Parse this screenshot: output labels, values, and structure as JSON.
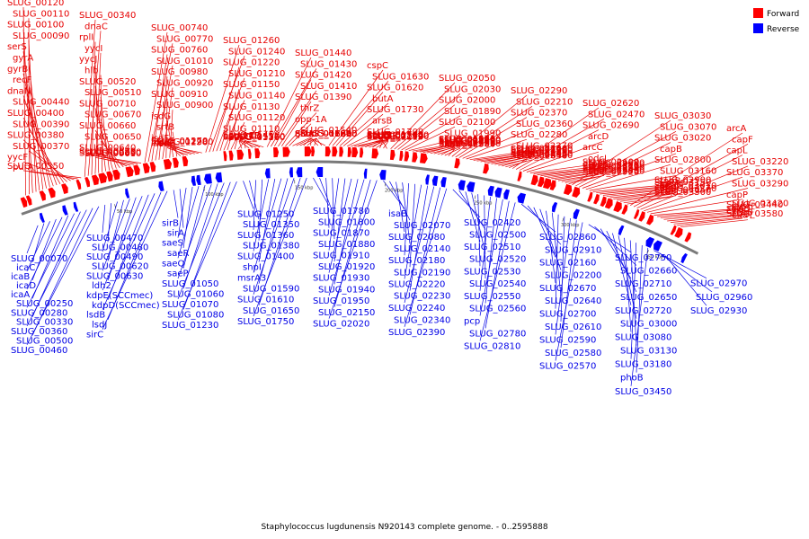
{
  "caption": "Staphylococcus lugdunensis N920143 complete genome. - 0..2595888",
  "legend": {
    "forward": {
      "label": "Forward",
      "color": "#ff0000"
    },
    "reverse": {
      "label": "Reverse",
      "color": "#0000ff"
    }
  },
  "colors": {
    "forward_text": "#e60000",
    "reverse_text": "#0000e6",
    "backbone": "#7a7a7a"
  },
  "scale_ticks": [
    "50 kbp",
    "100 kbp",
    "150 kbp",
    "200 kbp",
    "250 kbp",
    "300 kbp",
    "350 kbp"
  ],
  "forward_labels": [
    "SLUG_00120",
    "SLUG_00110",
    "SLUG_00100",
    "SLUG_00090",
    "serS",
    "gyrA",
    "gyrB",
    "recF",
    "dnaN",
    "SLUG_00440",
    "SLUG_00400",
    "SLUG_00390",
    "SLUG_00380",
    "SLUG_00370",
    "yycF",
    "purA",
    "SLUG_00350",
    "SLUG_00340",
    "dnaC",
    "rplI",
    "yycI",
    "yycJ",
    "hlb",
    "SLUG_00520",
    "SLUG_00510",
    "SLUG_00710",
    "SLUG_00670",
    "SLUG_00660",
    "SLUG_00650",
    "SLUG_00640",
    "SLUG_00610",
    "SLUG_00600",
    "SLUG_00830",
    "SLUG_00820",
    "SLUG_00740",
    "SLUG_00770",
    "SLUG_00760",
    "SLUG_01010",
    "SLUG_00980",
    "SLUG_00920",
    "SLUG_00910",
    "SLUG_00900",
    "isdG",
    "srtB",
    "isdF",
    "isdE",
    "isdK",
    "isdC",
    "SLUG_01290",
    "SLUG_01280",
    "SLUG_01270",
    "SLUG_01260",
    "SLUG_01240",
    "SLUG_01220",
    "SLUG_01210",
    "SLUG_01150",
    "SLUG_01140",
    "SLUG_01130",
    "SLUG_01120",
    "SLUG_01110",
    "SLUG_01160",
    "SLUG_01530",
    "SLUG_01510",
    "opp-1F",
    "opp-1D",
    "opp-1C",
    "opp-1B",
    "SLUG_01450",
    "SLUG_01440",
    "SLUG_01430",
    "SLUG_01420",
    "SLUG_01410",
    "SLUG_01390",
    "thrZ",
    "opp-1A",
    "SLUG_01540",
    "glcA",
    "SLUG_01830",
    "SLUG_01820",
    "SLUG_01810",
    "SLUG_01790",
    "SLUG_01690",
    "SLUG_01680",
    "SLUG_01670",
    "SLUG_01660",
    "cspC",
    "SLUG_01630",
    "SLUG_01620",
    "butA",
    "SLUG_01730",
    "arsB",
    "SLUG_01700",
    "crtN",
    "SLUG_01740",
    "SLUG_01640",
    "arsR2",
    "crtM",
    "SLUG_01840",
    "mepB",
    "SLUG_02130",
    "SLUG_02120",
    "SLUG_02110",
    "SLUG_02050",
    "SLUG_02030",
    "SLUG_02000",
    "SLUG_01890",
    "SLUG_02100",
    "SLUG_01990",
    "SLUG_01970",
    "SLUG_01960",
    "SLUG_01980",
    "SLUG_02090",
    "SLUG_02010",
    "SLUG_02410",
    "SLUG_02400",
    "pmi",
    "SLUG_02320",
    "SLUG_02310",
    "SLUG_02300",
    "SLUG_02290",
    "SLUG_02210",
    "SLUG_02370",
    "SLUG_02360",
    "SLUG_02280",
    "SLUG_02270",
    "SLUG_02260",
    "SLUG_02060",
    "SLUG_02170",
    "SLUG_02250",
    "SLUG_02350",
    "oxaA",
    "SLUG_02330",
    "SLUG_02430",
    "SLUG_02490",
    "SLUG_02480",
    "SLUG_02630",
    "SLUG_02620",
    "SLUG_02470",
    "SLUG_02690",
    "arcD",
    "arcC",
    "odcI",
    "SLUG_02600",
    "SLUG_02680",
    "drp35",
    "SLUG_02850",
    "SLUG_02820",
    "SLUG_02790",
    "SLUG_02760",
    "SLUG_02840",
    "SLUG_02950",
    "SLUG_02830",
    "SLUG_02920",
    "SLUG_03030",
    "SLUG_03070",
    "SLUG_03020",
    "capB",
    "SLUG_02800",
    "SLUG_03160",
    "SLUG_02900",
    "tnpB",
    "SLUG_03150",
    "capM",
    "slsF",
    "SLUG_03010",
    "capA",
    "SLUG_03270",
    "SLUG_03050",
    "capD",
    "SLUG_03300",
    "arcA",
    "capF",
    "capL",
    "SLUG_03220",
    "SLUG_03370",
    "SLUG_03290",
    "capP",
    "SLUG_03420",
    "SLUG_03440",
    "cysH",
    "slsA",
    "slsD",
    "cysJ",
    "sceB",
    "SLUG_03580",
    "cudT"
  ],
  "reverse_labels": [
    "SLUG_00070",
    "icaC",
    "icaB",
    "icaD",
    "icaA",
    "SLUG_00250",
    "SLUG_00280",
    "SLUG_00330",
    "SLUG_00360",
    "SLUG_00500",
    "SLUG_00460",
    "SLUG_00470",
    "SLUG_00480",
    "SLUG_00490",
    "SLUG_00620",
    "SLUG_00630",
    "ldh2",
    "kdpE(SCCmec)",
    "kdpD(SCCmec)",
    "lsdB",
    "lsdJ",
    "sirC",
    "sirB",
    "sirA",
    "saeS",
    "saeR",
    "saeQ",
    "saeP",
    "SLUG_01050",
    "SLUG_01060",
    "SLUG_01070",
    "SLUG_01080",
    "SLUG_01230",
    "SLUG_01250",
    "SLUG_01350",
    "SLUG_01360",
    "SLUG_01380",
    "SLUG_01400",
    "shpI",
    "msrA3",
    "SLUG_01590",
    "SLUG_01610",
    "SLUG_01650",
    "SLUG_01750",
    "SLUG_01780",
    "SLUG_01800",
    "SLUG_01870",
    "SLUG_01880",
    "SLUG_01910",
    "SLUG_01920",
    "SLUG_01930",
    "SLUG_01940",
    "SLUG_01950",
    "SLUG_02150",
    "SLUG_02020",
    "isaB",
    "SLUG_02070",
    "SLUG_02080",
    "SLUG_02140",
    "SLUG_02180",
    "SLUG_02190",
    "SLUG_02220",
    "SLUG_02230",
    "SLUG_02240",
    "SLUG_02340",
    "SLUG_02390",
    "SLUG_02420",
    "SLUG_02500",
    "SLUG_02510",
    "SLUG_02520",
    "SLUG_02530",
    "SLUG_02540",
    "SLUG_02550",
    "SLUG_02560",
    "pcp",
    "SLUG_02780",
    "SLUG_02810",
    "SLUG_02860",
    "SLUG_02910",
    "SLUG_02160",
    "SLUG_02200",
    "SLUG_02670",
    "SLUG_02640",
    "SLUG_02700",
    "SLUG_02610",
    "SLUG_02590",
    "SLUG_02580",
    "SLUG_02570",
    "SLUG_02750",
    "SLUG_02660",
    "SLUG_02710",
    "SLUG_02650",
    "SLUG_02720",
    "SLUG_03000",
    "SLUG_03080",
    "SLUG_03130",
    "SLUG_03180",
    "phoB",
    "SLUG_03450",
    "SLUG_02970",
    "SLUG_02960",
    "SLUG_02930"
  ]
}
